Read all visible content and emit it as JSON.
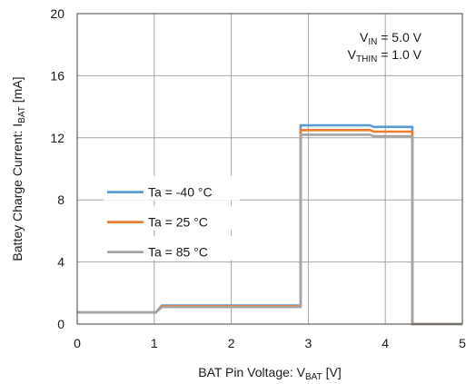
{
  "chart_data": {
    "type": "line",
    "title": "",
    "xlabel": {
      "parts": [
        {
          "text": "BAT Pin Voltage: V",
          "sub": false
        },
        {
          "text": "BAT",
          "sub": true
        },
        {
          "text": " [V]",
          "sub": false
        }
      ]
    },
    "ylabel": {
      "parts": [
        {
          "text": "Battey Charge Current: I",
          "sub": false
        },
        {
          "text": "BAT",
          "sub": true
        },
        {
          "text": " [mA]",
          "sub": false
        }
      ]
    },
    "xlim": [
      0,
      5
    ],
    "ylim": [
      0,
      20
    ],
    "x_ticks": [
      0,
      1,
      2,
      3,
      4,
      5
    ],
    "y_ticks": [
      0,
      4,
      8,
      12,
      16,
      20
    ],
    "grid": true,
    "legend_position": "center-left",
    "conditions": [
      {
        "parts": [
          {
            "text": "V",
            "sub": false
          },
          {
            "text": "IN",
            "sub": true
          },
          {
            "text": " = 5.0 V",
            "sub": false
          }
        ]
      },
      {
        "parts": [
          {
            "text": "V",
            "sub": false
          },
          {
            "text": "THIN",
            "sub": true
          },
          {
            "text": " = 1.0 V",
            "sub": false
          }
        ]
      }
    ],
    "series": [
      {
        "name": "Ta =  -40 °C",
        "color": "#5b9bd5",
        "points": [
          [
            0,
            0.75
          ],
          [
            1.02,
            0.75
          ],
          [
            1.1,
            1.2
          ],
          [
            2.9,
            1.2
          ],
          [
            2.9,
            12.8
          ],
          [
            3.8,
            12.8
          ],
          [
            3.85,
            12.7
          ],
          [
            4.35,
            12.7
          ],
          [
            4.35,
            0
          ],
          [
            5,
            0
          ]
        ]
      },
      {
        "name": "Ta =  25 °C",
        "color": "#ed7d31",
        "points": [
          [
            0,
            0.75
          ],
          [
            1.02,
            0.75
          ],
          [
            1.1,
            1.15
          ],
          [
            2.9,
            1.15
          ],
          [
            2.9,
            12.5
          ],
          [
            3.8,
            12.5
          ],
          [
            3.85,
            12.4
          ],
          [
            4.35,
            12.4
          ],
          [
            4.35,
            0
          ],
          [
            5,
            0
          ]
        ]
      },
      {
        "name": "Ta =  85 °C",
        "color": "#a5a5a5",
        "points": [
          [
            0,
            0.75
          ],
          [
            1.02,
            0.75
          ],
          [
            1.1,
            1.1
          ],
          [
            2.9,
            1.1
          ],
          [
            2.9,
            12.2
          ],
          [
            3.8,
            12.2
          ],
          [
            3.85,
            12.1
          ],
          [
            4.35,
            12.1
          ],
          [
            4.35,
            0
          ],
          [
            5,
            0
          ]
        ]
      }
    ]
  }
}
